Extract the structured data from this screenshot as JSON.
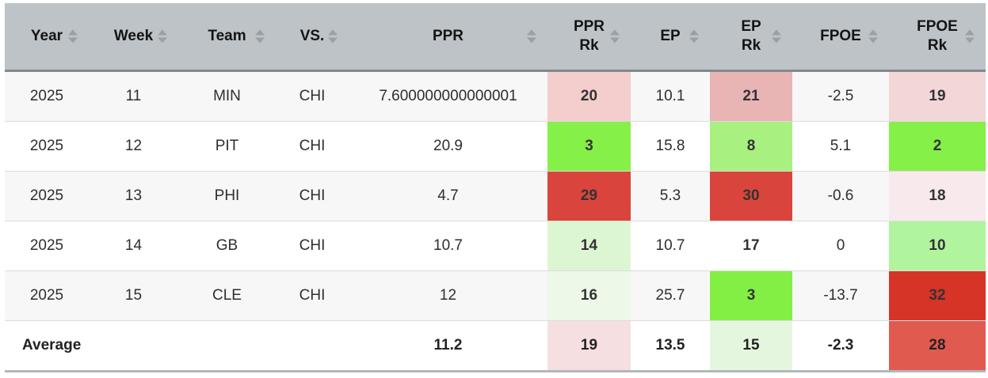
{
  "table": {
    "columns": [
      {
        "id": "year",
        "label_lines": [
          "Year"
        ],
        "sortable": true
      },
      {
        "id": "week",
        "label_lines": [
          "Week"
        ],
        "sortable": true
      },
      {
        "id": "team",
        "label_lines": [
          "Team"
        ],
        "sortable": true
      },
      {
        "id": "vs",
        "label_lines": [
          "VS."
        ],
        "sortable": true
      },
      {
        "id": "ppr",
        "label_lines": [
          "PPR"
        ],
        "sortable": true
      },
      {
        "id": "ppr-rk",
        "label_lines": [
          "PPR",
          "Rk"
        ],
        "sortable": true
      },
      {
        "id": "ep",
        "label_lines": [
          "EP"
        ],
        "sortable": true
      },
      {
        "id": "ep-rk",
        "label_lines": [
          "EP",
          "Rk"
        ],
        "sortable": true
      },
      {
        "id": "fpoe",
        "label_lines": [
          "FPOE"
        ],
        "sortable": true
      },
      {
        "id": "fpoe-rk",
        "label_lines": [
          "FPOE",
          "Rk"
        ],
        "sortable": true
      }
    ],
    "rows": [
      {
        "average": false,
        "cells": [
          {
            "v": "2025"
          },
          {
            "v": "11"
          },
          {
            "v": "MIN"
          },
          {
            "v": "CHI"
          },
          {
            "v": "7.600000000000001"
          },
          {
            "v": "20",
            "rank": true,
            "bg": "#f4cdcd"
          },
          {
            "v": "10.1"
          },
          {
            "v": "21",
            "rank": true,
            "bg": "#e9b4b4"
          },
          {
            "v": "-2.5"
          },
          {
            "v": "19",
            "rank": true,
            "bg": "#f2d6d8"
          }
        ]
      },
      {
        "average": false,
        "cells": [
          {
            "v": "2025"
          },
          {
            "v": "12"
          },
          {
            "v": "PIT"
          },
          {
            "v": "CHI"
          },
          {
            "v": "20.9"
          },
          {
            "v": "3",
            "rank": true,
            "bg": "#85f047"
          },
          {
            "v": "15.8"
          },
          {
            "v": "8",
            "rank": true,
            "bg": "#a8f080"
          },
          {
            "v": "5.1"
          },
          {
            "v": "2",
            "rank": true,
            "bg": "#85f047"
          }
        ]
      },
      {
        "average": false,
        "cells": [
          {
            "v": "2025"
          },
          {
            "v": "13"
          },
          {
            "v": "PHI"
          },
          {
            "v": "CHI"
          },
          {
            "v": "4.7"
          },
          {
            "v": "29",
            "rank": true,
            "bg": "#d9453c"
          },
          {
            "v": "5.3"
          },
          {
            "v": "30",
            "rank": true,
            "bg": "#d9453c"
          },
          {
            "v": "-0.6"
          },
          {
            "v": "18",
            "rank": true,
            "bg": "#f7e9ec"
          }
        ]
      },
      {
        "average": false,
        "cells": [
          {
            "v": "2025"
          },
          {
            "v": "14"
          },
          {
            "v": "GB"
          },
          {
            "v": "CHI"
          },
          {
            "v": "10.7"
          },
          {
            "v": "14",
            "rank": true,
            "bg": "#ddf6d2"
          },
          {
            "v": "10.7"
          },
          {
            "v": "17",
            "rank": true
          },
          {
            "v": "0"
          },
          {
            "v": "10",
            "rank": true,
            "bg": "#b1f49e"
          }
        ]
      },
      {
        "average": false,
        "cells": [
          {
            "v": "2025"
          },
          {
            "v": "15"
          },
          {
            "v": "CLE"
          },
          {
            "v": "CHI"
          },
          {
            "v": "12"
          },
          {
            "v": "16",
            "rank": true,
            "bg": "#edf8e9"
          },
          {
            "v": "25.7"
          },
          {
            "v": "3",
            "rank": true,
            "bg": "#83ef44"
          },
          {
            "v": "-13.7"
          },
          {
            "v": "32",
            "rank": true,
            "bg": "#d63426"
          }
        ]
      },
      {
        "average": true,
        "cells": [
          {
            "v": "Average",
            "align": "left"
          },
          {
            "v": ""
          },
          {
            "v": ""
          },
          {
            "v": ""
          },
          {
            "v": "11.2"
          },
          {
            "v": "19",
            "rank": true,
            "bg": "#f6dfe0"
          },
          {
            "v": "13.5"
          },
          {
            "v": "15",
            "rank": true,
            "bg": "#e4f7de"
          },
          {
            "v": "-2.3"
          },
          {
            "v": "28",
            "rank": true,
            "bg": "#e15a50"
          }
        ]
      }
    ],
    "colors": {
      "header_bg": "#bdc3c7",
      "header_border": "#84888c",
      "row_stripe": "#f7f7f7",
      "row_border": "#dcdcdc",
      "table_bottom_border": "#b3b7bb",
      "sort_arrow": "#9aa0a5",
      "rank_good": "#85f047",
      "rank_bad": "#d9453c"
    }
  }
}
